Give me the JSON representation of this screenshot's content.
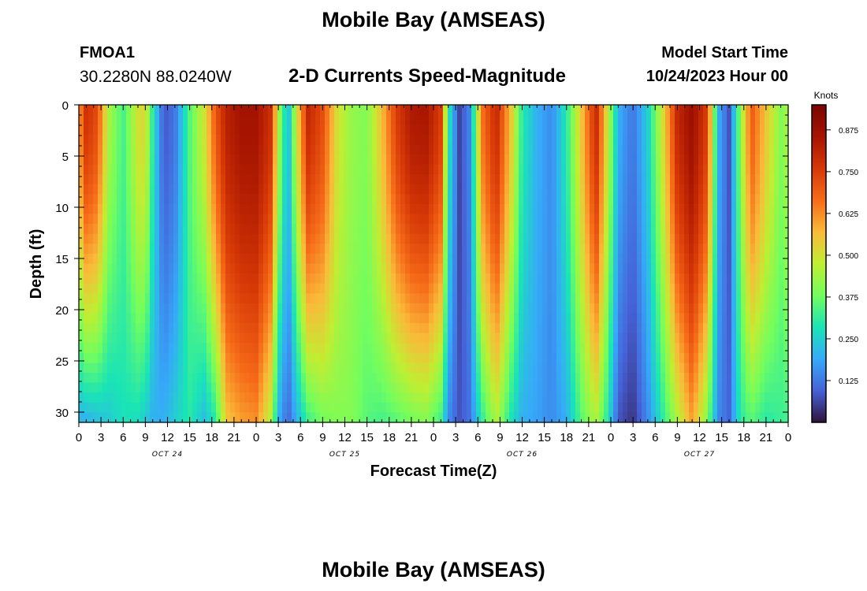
{
  "header": {
    "title": "Mobile Bay (AMSEAS)",
    "station_id": "FMOA1",
    "station_coords": "30.2280N  88.0240W",
    "subtitle": "2-D Currents Speed-Magnitude",
    "start_label": "Model Start Time",
    "start_value": "10/24/2023 Hour 00"
  },
  "footer": {
    "title": "Mobile Bay (AMSEAS)"
  },
  "chart_data": {
    "type": "heatmap",
    "title": "2-D Currents Speed-Magnitude",
    "xlabel": "Forecast Time(Z)",
    "ylabel": "Depth (ft)",
    "x_units": "hours from model start",
    "xlim": [
      0,
      96
    ],
    "ylim": [
      0,
      31
    ],
    "y_inverted": true,
    "xtick_values": [
      0,
      3,
      6,
      9,
      12,
      15,
      18,
      21,
      24,
      27,
      30,
      33,
      36,
      39,
      42,
      45,
      48,
      51,
      54,
      57,
      60,
      63,
      66,
      69,
      72,
      75,
      78,
      81,
      84,
      87,
      90,
      93,
      96
    ],
    "xtick_labels": [
      "0",
      "3",
      "6",
      "9",
      "12",
      "15",
      "18",
      "21",
      "0",
      "3",
      "6",
      "9",
      "12",
      "15",
      "18",
      "21",
      "0",
      "3",
      "6",
      "9",
      "12",
      "15",
      "18",
      "21",
      "0",
      "3",
      "6",
      "9",
      "12",
      "15",
      "18",
      "21",
      "0"
    ],
    "yticks": [
      0,
      5,
      10,
      15,
      20,
      25,
      30
    ],
    "day_labels": [
      {
        "hour": 12,
        "label": "OCT 24"
      },
      {
        "hour": 36,
        "label": "OCT 25"
      },
      {
        "hour": 60,
        "label": "OCT 26"
      },
      {
        "hour": 84,
        "label": "OCT 27"
      }
    ],
    "colorbar": {
      "unit": "Knots",
      "min": 0.0,
      "max": 0.95,
      "ticks": [
        0.125,
        0.25,
        0.375,
        0.5,
        0.625,
        0.75,
        0.875
      ],
      "tick_labels": [
        "0.125",
        "0.250",
        "0.375",
        "0.500",
        "0.625",
        "0.750",
        "0.875"
      ],
      "colormap": "turbo"
    },
    "speed_profile": [
      {
        "t": 0,
        "surface": 0.6,
        "bottom": 0.2
      },
      {
        "t": 1,
        "surface": 0.78,
        "bottom": 0.2
      },
      {
        "t": 2.5,
        "surface": 0.72,
        "bottom": 0.22
      },
      {
        "t": 4,
        "surface": 0.45,
        "bottom": 0.24
      },
      {
        "t": 6,
        "surface": 0.33,
        "bottom": 0.28
      },
      {
        "t": 8,
        "surface": 0.5,
        "bottom": 0.27
      },
      {
        "t": 9,
        "surface": 0.52,
        "bottom": 0.24
      },
      {
        "t": 10,
        "surface": 0.3,
        "bottom": 0.2
      },
      {
        "t": 11.5,
        "surface": 0.08,
        "bottom": 0.2
      },
      {
        "t": 13,
        "surface": 0.12,
        "bottom": 0.25
      },
      {
        "t": 15,
        "surface": 0.35,
        "bottom": 0.3
      },
      {
        "t": 17,
        "surface": 0.5,
        "bottom": 0.22
      },
      {
        "t": 18.5,
        "surface": 0.7,
        "bottom": 0.3
      },
      {
        "t": 20,
        "surface": 0.82,
        "bottom": 0.55
      },
      {
        "t": 22,
        "surface": 0.86,
        "bottom": 0.6
      },
      {
        "t": 24,
        "surface": 0.86,
        "bottom": 0.62
      },
      {
        "t": 26,
        "surface": 0.78,
        "bottom": 0.45
      },
      {
        "t": 27,
        "surface": 0.45,
        "bottom": 0.2
      },
      {
        "t": 28.3,
        "surface": 0.2,
        "bottom": 0.1
      },
      {
        "t": 29.5,
        "surface": 0.5,
        "bottom": 0.2
      },
      {
        "t": 31,
        "surface": 0.8,
        "bottom": 0.32
      },
      {
        "t": 33,
        "surface": 0.72,
        "bottom": 0.38
      },
      {
        "t": 35,
        "surface": 0.5,
        "bottom": 0.4
      },
      {
        "t": 37,
        "surface": 0.42,
        "bottom": 0.4
      },
      {
        "t": 39,
        "surface": 0.4,
        "bottom": 0.35
      },
      {
        "t": 41,
        "surface": 0.56,
        "bottom": 0.33
      },
      {
        "t": 43,
        "surface": 0.75,
        "bottom": 0.35
      },
      {
        "t": 45,
        "surface": 0.84,
        "bottom": 0.38
      },
      {
        "t": 47,
        "surface": 0.85,
        "bottom": 0.4
      },
      {
        "t": 49,
        "surface": 0.75,
        "bottom": 0.32
      },
      {
        "t": 50,
        "surface": 0.3,
        "bottom": 0.15
      },
      {
        "t": 51.5,
        "surface": 0.06,
        "bottom": 0.08
      },
      {
        "t": 53,
        "surface": 0.15,
        "bottom": 0.12
      },
      {
        "t": 54.5,
        "surface": 0.65,
        "bottom": 0.3
      },
      {
        "t": 56.5,
        "surface": 0.8,
        "bottom": 0.45
      },
      {
        "t": 58.5,
        "surface": 0.55,
        "bottom": 0.28
      },
      {
        "t": 60,
        "surface": 0.3,
        "bottom": 0.2
      },
      {
        "t": 62,
        "surface": 0.2,
        "bottom": 0.18
      },
      {
        "t": 64,
        "surface": 0.15,
        "bottom": 0.15
      },
      {
        "t": 66,
        "surface": 0.3,
        "bottom": 0.2
      },
      {
        "t": 68,
        "surface": 0.55,
        "bottom": 0.35
      },
      {
        "t": 70,
        "surface": 0.8,
        "bottom": 0.45
      },
      {
        "t": 71.5,
        "surface": 0.5,
        "bottom": 0.3
      },
      {
        "t": 73,
        "surface": 0.2,
        "bottom": 0.08
      },
      {
        "t": 75,
        "surface": 0.12,
        "bottom": 0.04
      },
      {
        "t": 77,
        "surface": 0.25,
        "bottom": 0.15
      },
      {
        "t": 79,
        "surface": 0.5,
        "bottom": 0.3
      },
      {
        "t": 81,
        "surface": 0.8,
        "bottom": 0.45
      },
      {
        "t": 83,
        "surface": 0.88,
        "bottom": 0.6
      },
      {
        "t": 85,
        "surface": 0.75,
        "bottom": 0.4
      },
      {
        "t": 86.5,
        "surface": 0.2,
        "bottom": 0.15
      },
      {
        "t": 88,
        "surface": 0.08,
        "bottom": 0.1
      },
      {
        "t": 89.5,
        "surface": 0.4,
        "bottom": 0.3
      },
      {
        "t": 91,
        "surface": 0.7,
        "bottom": 0.35
      },
      {
        "t": 93,
        "surface": 0.55,
        "bottom": 0.3
      },
      {
        "t": 95,
        "surface": 0.4,
        "bottom": 0.32
      },
      {
        "t": 96,
        "surface": 0.45,
        "bottom": 0.33
      }
    ]
  }
}
